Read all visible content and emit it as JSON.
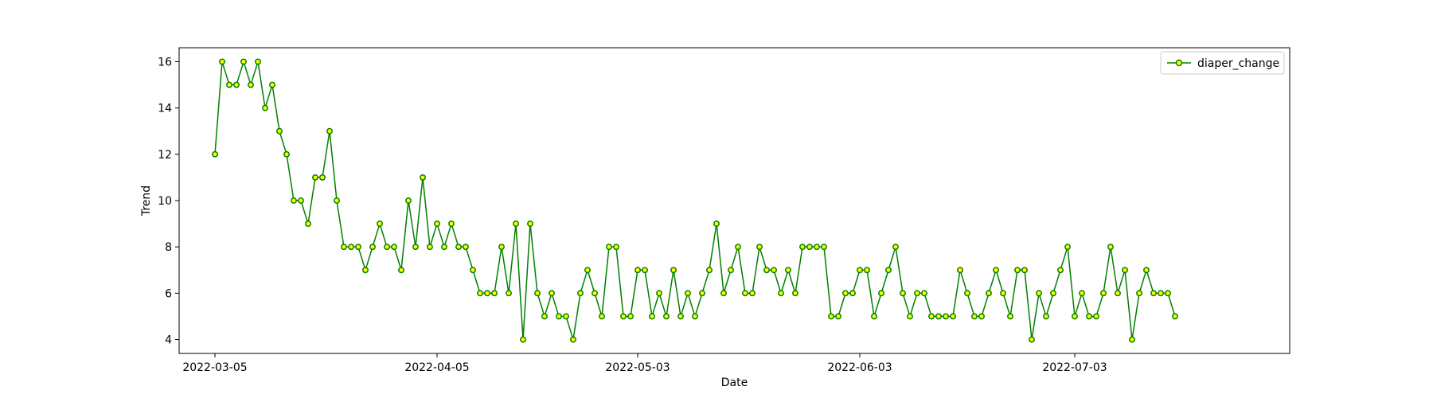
{
  "chart_data": {
    "type": "line",
    "xlabel": "Date",
    "ylabel": "Trend",
    "xlim": [
      "2022-02-28",
      "2022-08-02"
    ],
    "ylim": [
      3.4,
      16.6
    ],
    "yticks": [
      4,
      6,
      8,
      10,
      12,
      14,
      16
    ],
    "xticks": [
      "2022-03-05",
      "2022-04-05",
      "2022-05-03",
      "2022-06-03",
      "2022-07-03"
    ],
    "x_start": "2022-03-05",
    "legend_position": "top-right",
    "grid": false,
    "line_color": "#008000",
    "marker_fill": "#ffff00",
    "series": [
      {
        "name": "diaper_change",
        "values": [
          12,
          16,
          15,
          15,
          16,
          15,
          16,
          14,
          15,
          13,
          12,
          10,
          10,
          9,
          11,
          11,
          13,
          10,
          8,
          8,
          8,
          7,
          8,
          9,
          8,
          8,
          7,
          10,
          8,
          11,
          8,
          9,
          8,
          9,
          8,
          8,
          7,
          6,
          6,
          6,
          8,
          6,
          9,
          4,
          9,
          6,
          5,
          6,
          5,
          5,
          4,
          6,
          7,
          6,
          5,
          8,
          8,
          5,
          5,
          7,
          7,
          5,
          6,
          5,
          7,
          5,
          6,
          5,
          6,
          7,
          9,
          6,
          7,
          8,
          6,
          6,
          8,
          7,
          7,
          6,
          7,
          6,
          8,
          8,
          8,
          8,
          5,
          5,
          6,
          6,
          7,
          7,
          5,
          6,
          7,
          8,
          6,
          5,
          6,
          6,
          5,
          5,
          5,
          5,
          7,
          6,
          5,
          5,
          6,
          7,
          6,
          5,
          7,
          7,
          4,
          6,
          5,
          6,
          7,
          8,
          5,
          6,
          5,
          5,
          6,
          8,
          6,
          7,
          4,
          6,
          7,
          6,
          6,
          6,
          5
        ]
      }
    ]
  }
}
